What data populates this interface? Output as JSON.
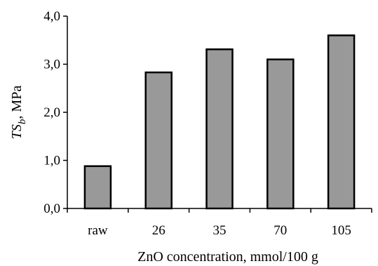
{
  "chart_data": {
    "type": "bar",
    "categories": [
      "raw",
      "26",
      "35",
      "70",
      "105"
    ],
    "values": [
      0.88,
      2.83,
      3.31,
      3.1,
      3.6
    ],
    "ylim": [
      0,
      4
    ],
    "yticks": [
      0,
      1,
      2,
      3,
      4
    ],
    "ytick_labels": [
      "0,0",
      "1,0",
      "2,0",
      "3,0",
      "4,0"
    ],
    "xlabel": "ZnO concentration, mmol/100 g",
    "ylabel": {
      "main": "TS",
      "sub": "b",
      "unit": ", MPa"
    },
    "bar_color": "#999999",
    "grid": false,
    "legend": "none"
  }
}
